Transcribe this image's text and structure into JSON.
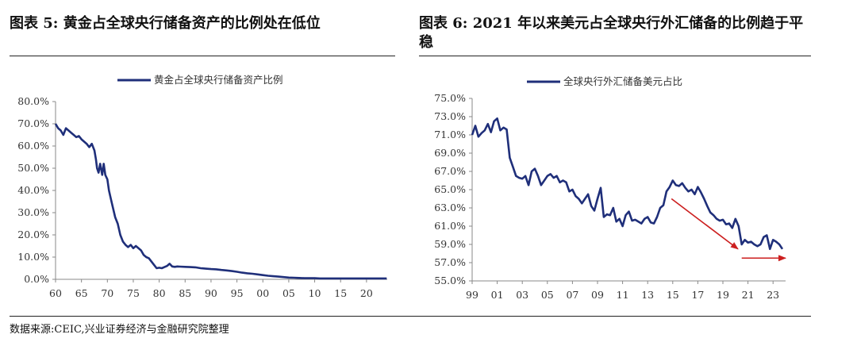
{
  "header": {
    "left_title": "图表 5:  黄金占全球央行储备资产的比例处在低位",
    "right_title": "图表 6:  2021 年以来美元占全球央行外汇储备的比例趋于平稳"
  },
  "footer": {
    "source": "数据来源:CEIC,兴业证券经济与金融研究院整理"
  },
  "colors": {
    "series": "#1f2f7a",
    "arrow": "#cc1f1f",
    "axis": "#888888"
  },
  "chart_data": [
    {
      "type": "line",
      "legend": "黄金占全球央行储备资产比例",
      "legend_position": "top-center",
      "x_range": [
        60,
        24
      ],
      "x_ticks": [
        60,
        65,
        70,
        75,
        80,
        85,
        90,
        95,
        0,
        5,
        10,
        15,
        20
      ],
      "x_tick_labels": [
        "60",
        "65",
        "70",
        "75",
        "80",
        "85",
        "90",
        "95",
        "00",
        "05",
        "10",
        "15",
        "20"
      ],
      "ylim": [
        0,
        80
      ],
      "y_ticks": [
        "0.0%",
        "10.0%",
        "20.0%",
        "30.0%",
        "40.0%",
        "50.0%",
        "60.0%",
        "70.0%",
        "80.0%"
      ],
      "grid": false,
      "series": [
        {
          "x": [
            1960.0,
            1960.5,
            1961.0,
            1961.5,
            1962.0,
            1962.5,
            1963.0,
            1963.5,
            1964.0,
            1964.5,
            1965.0,
            1965.5,
            1966.0,
            1966.5,
            1967.0,
            1967.5,
            1967.8,
            1968.0,
            1968.3,
            1968.6,
            1969.0,
            1969.3,
            1969.6,
            1970.0,
            1970.3,
            1970.6,
            1971.0,
            1971.5,
            1972.0,
            1972.5,
            1973.0,
            1973.5,
            1974.0,
            1974.5,
            1975.0,
            1975.5,
            1976.0,
            1976.5,
            1977.0,
            1977.5,
            1978.0,
            1978.5,
            1979.0,
            1979.5,
            1980.0,
            1980.5,
            1981.0,
            1981.5,
            1982.0,
            1982.5,
            1983.0,
            1983.5,
            1984.0,
            1985.0,
            1986.0,
            1987.0,
            1988.0,
            1989.0,
            1990.0,
            1991.0,
            1992.0,
            1993.0,
            1994.0,
            1995.0,
            1996.0,
            1997.0,
            1998.0,
            1999.0,
            2000.0,
            2001.0,
            2002.0,
            2003.0,
            2004.0,
            2005.0,
            2006.0,
            2007.0,
            2008.0,
            2009.0,
            2010.0,
            2011.0,
            2012.0,
            2013.0,
            2014.0,
            2015.0,
            2016.0,
            2017.0,
            2018.0,
            2019.0,
            2020.0,
            2021.0,
            2022.0,
            2023.0,
            2023.9
          ],
          "y": [
            70.0,
            68.0,
            67.0,
            65.0,
            68.0,
            67.0,
            66.0,
            65.0,
            64.0,
            64.5,
            63.0,
            62.0,
            61.0,
            59.5,
            61.0,
            58.0,
            54.0,
            50.0,
            48.0,
            52.0,
            47.0,
            52.0,
            47.0,
            45.0,
            40.0,
            37.0,
            33.0,
            28.0,
            25.0,
            20.0,
            17.0,
            15.5,
            14.5,
            15.5,
            14.0,
            15.0,
            14.0,
            13.0,
            11.0,
            10.0,
            9.5,
            8.0,
            6.5,
            5.0,
            5.2,
            5.0,
            5.5,
            6.0,
            7.0,
            5.8,
            5.6,
            5.8,
            5.7,
            5.6,
            5.5,
            5.4,
            5.0,
            4.8,
            4.6,
            4.5,
            4.2,
            4.0,
            3.7,
            3.4,
            3.0,
            2.7,
            2.5,
            2.2,
            1.9,
            1.6,
            1.4,
            1.2,
            1.0,
            0.8,
            0.7,
            0.6,
            0.5,
            0.5,
            0.5,
            0.4,
            0.4,
            0.4,
            0.4,
            0.4,
            0.4,
            0.4,
            0.4,
            0.4,
            0.4,
            0.4,
            0.4,
            0.4,
            0.4
          ]
        }
      ]
    },
    {
      "type": "line",
      "legend": "全球央行外汇储备美元占比",
      "legend_position": "top-center",
      "x_range": [
        1999,
        2024
      ],
      "x_ticks": [
        1999,
        2001,
        2003,
        2005,
        2007,
        2009,
        2011,
        2013,
        2015,
        2017,
        2019,
        2021,
        2023
      ],
      "x_tick_labels": [
        "99",
        "01",
        "03",
        "05",
        "07",
        "09",
        "11",
        "13",
        "15",
        "17",
        "19",
        "21",
        "23"
      ],
      "ylim": [
        55,
        75
      ],
      "y_ticks": [
        "55.0%",
        "57.0%",
        "59.0%",
        "61.0%",
        "63.0%",
        "65.0%",
        "67.0%",
        "69.0%",
        "71.0%",
        "73.0%",
        "75.0%"
      ],
      "grid": false,
      "annotations": [
        {
          "type": "arrow",
          "from": [
            2014.9,
            64.0
          ],
          "to": [
            2020.2,
            58.5
          ]
        },
        {
          "type": "arrow",
          "from": [
            2020.5,
            57.5
          ],
          "to": [
            2024.0,
            57.5
          ]
        }
      ],
      "series": [
        {
          "x": [
            1999.0,
            1999.25,
            1999.5,
            1999.75,
            2000.0,
            2000.25,
            2000.5,
            2000.75,
            2001.0,
            2001.25,
            2001.5,
            2001.75,
            2002.0,
            2002.25,
            2002.5,
            2002.75,
            2003.0,
            2003.25,
            2003.5,
            2003.75,
            2004.0,
            2004.25,
            2004.5,
            2004.75,
            2005.0,
            2005.25,
            2005.5,
            2005.75,
            2006.0,
            2006.25,
            2006.5,
            2006.75,
            2007.0,
            2007.25,
            2007.5,
            2007.75,
            2008.0,
            2008.25,
            2008.5,
            2008.75,
            2009.0,
            2009.25,
            2009.5,
            2009.75,
            2010.0,
            2010.25,
            2010.5,
            2010.75,
            2011.0,
            2011.25,
            2011.5,
            2011.75,
            2012.0,
            2012.25,
            2012.5,
            2012.75,
            2013.0,
            2013.25,
            2013.5,
            2013.75,
            2014.0,
            2014.25,
            2014.5,
            2014.75,
            2015.0,
            2015.25,
            2015.5,
            2015.75,
            2016.0,
            2016.25,
            2016.5,
            2016.75,
            2017.0,
            2017.25,
            2017.5,
            2017.75,
            2018.0,
            2018.25,
            2018.5,
            2018.75,
            2019.0,
            2019.25,
            2019.5,
            2019.75,
            2020.0,
            2020.25,
            2020.5,
            2020.75,
            2021.0,
            2021.25,
            2021.5,
            2021.75,
            2022.0,
            2022.25,
            2022.5,
            2022.75,
            2023.0,
            2023.25,
            2023.5,
            2023.75
          ],
          "y": [
            71.0,
            72.0,
            70.8,
            71.2,
            71.5,
            72.2,
            71.3,
            72.5,
            72.8,
            71.5,
            71.8,
            71.6,
            68.5,
            67.5,
            66.5,
            66.3,
            66.2,
            66.5,
            65.5,
            67.0,
            67.3,
            66.5,
            65.5,
            66.0,
            66.5,
            66.7,
            66.3,
            66.5,
            65.8,
            66.0,
            65.8,
            64.8,
            65.0,
            64.3,
            64.0,
            63.5,
            64.0,
            64.5,
            63.2,
            62.7,
            64.0,
            65.2,
            62.0,
            62.3,
            62.2,
            63.0,
            61.5,
            61.8,
            61.0,
            62.2,
            62.6,
            61.6,
            61.7,
            61.5,
            61.3,
            61.8,
            62.0,
            61.4,
            61.3,
            62.0,
            63.0,
            63.3,
            64.8,
            65.3,
            66.0,
            65.5,
            65.4,
            65.7,
            65.2,
            64.8,
            65.0,
            64.5,
            65.3,
            64.7,
            64.0,
            63.2,
            62.5,
            62.2,
            61.8,
            61.6,
            61.7,
            61.2,
            61.3,
            60.8,
            61.8,
            61.0,
            59.0,
            59.5,
            59.2,
            59.3,
            59.0,
            58.8,
            59.0,
            59.8,
            60.0,
            58.5,
            59.5,
            59.3,
            59.0,
            58.5
          ]
        }
      ]
    }
  ]
}
